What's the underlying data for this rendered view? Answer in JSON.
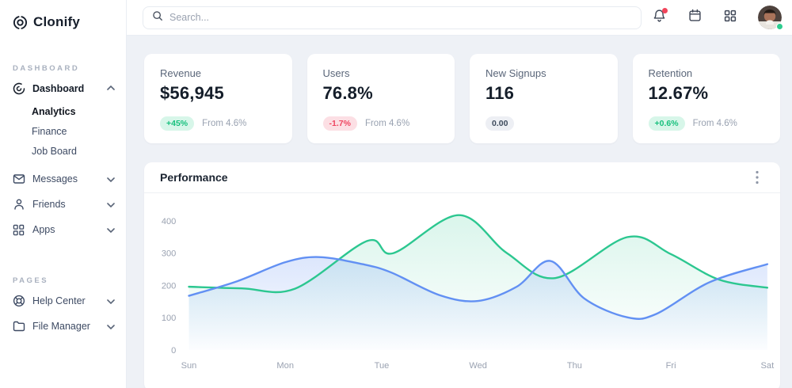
{
  "app": {
    "name": "Clonify"
  },
  "sidebar": {
    "logo": "Clonify",
    "sections": [
      {
        "title": "DASHBOARD",
        "items": [
          {
            "label": "Dashboard",
            "icon": "dashboard-icon",
            "expanded": true,
            "children": [
              {
                "label": "Analytics",
                "active": true
              },
              {
                "label": "Finance",
                "active": false
              },
              {
                "label": "Job Board",
                "active": false
              }
            ]
          },
          {
            "label": "Messages",
            "icon": "messages-icon",
            "expanded": false
          },
          {
            "label": "Friends",
            "icon": "friends-icon",
            "expanded": false
          },
          {
            "label": "Apps",
            "icon": "apps-icon",
            "expanded": false
          }
        ]
      },
      {
        "title": "PAGES",
        "items": [
          {
            "label": "Help Center",
            "icon": "help-icon",
            "expanded": false
          },
          {
            "label": "File Manager",
            "icon": "folder-icon",
            "expanded": false
          }
        ]
      }
    ]
  },
  "topbar": {
    "search_placeholder": "Search...",
    "icons": [
      "bell-icon",
      "calendar-icon",
      "apps-grid-icon",
      "avatar"
    ],
    "bell_has_notification": true,
    "avatar_status": "online"
  },
  "stats": {
    "cards": [
      {
        "title": "Revenue",
        "value": "$56,945",
        "badge": {
          "text": "+45%",
          "tone": "positive"
        },
        "note": "From 4.6%"
      },
      {
        "title": "Users",
        "value": "76.8%",
        "badge": {
          "text": "-1.7%",
          "tone": "negative"
        },
        "note": "From 4.6%"
      },
      {
        "title": "New Signups",
        "value": "116",
        "badge": {
          "text": "0.00",
          "tone": "neutral"
        },
        "note": ""
      },
      {
        "title": "Retention",
        "value": "12.67%",
        "badge": {
          "text": "+0.6%",
          "tone": "positive"
        },
        "note": "From 4.6%"
      }
    ]
  },
  "panel": {
    "title": "Performance"
  },
  "chart_data": {
    "type": "area",
    "title": "Performance",
    "x_labels": [
      "Sun",
      "Mon",
      "Tue",
      "Wed",
      "Thu",
      "Fri",
      "Sat"
    ],
    "y_ticks": [
      0,
      100,
      200,
      300,
      400
    ],
    "y_axis_max": 450,
    "grid": false,
    "legend": "none",
    "axis_label_color": "#9aa2b1",
    "series": [
      {
        "name": "series-green",
        "color": "#2cc790",
        "fill_top": "rgba(44,199,144,0.17)",
        "fill_bottom": "rgba(44,199,144,0)",
        "points": [
          [
            0,
            196
          ],
          [
            0.55,
            191
          ],
          [
            1.1,
            190
          ],
          [
            1.85,
            338
          ],
          [
            2.12,
            300
          ],
          [
            2.8,
            418
          ],
          [
            3.3,
            300
          ],
          [
            3.8,
            223
          ],
          [
            4.55,
            350
          ],
          [
            5.0,
            297
          ],
          [
            5.5,
            218
          ],
          [
            6,
            193
          ]
        ]
      },
      {
        "name": "series-blue",
        "color": "#6290f3",
        "fill_top": "rgba(98,144,243,0.30)",
        "fill_bottom": "rgba(98,144,243,0.02)",
        "points": [
          [
            0,
            168
          ],
          [
            0.5,
            213
          ],
          [
            1.0,
            272
          ],
          [
            1.35,
            288
          ],
          [
            1.8,
            266
          ],
          [
            2.1,
            240
          ],
          [
            2.6,
            170
          ],
          [
            3.0,
            152
          ],
          [
            3.4,
            196
          ],
          [
            3.75,
            276
          ],
          [
            4.1,
            160
          ],
          [
            4.55,
            101
          ],
          [
            4.85,
            112
          ],
          [
            5.4,
            210
          ],
          [
            6,
            266
          ]
        ]
      }
    ]
  },
  "colors": {
    "background": "#eef1f6",
    "surface": "#ffffff",
    "border": "#e9edf3",
    "accent_green": "#2cc790",
    "accent_blue": "#6290f3",
    "notification_red": "#f1455b",
    "online_green": "#2ecc8f"
  }
}
